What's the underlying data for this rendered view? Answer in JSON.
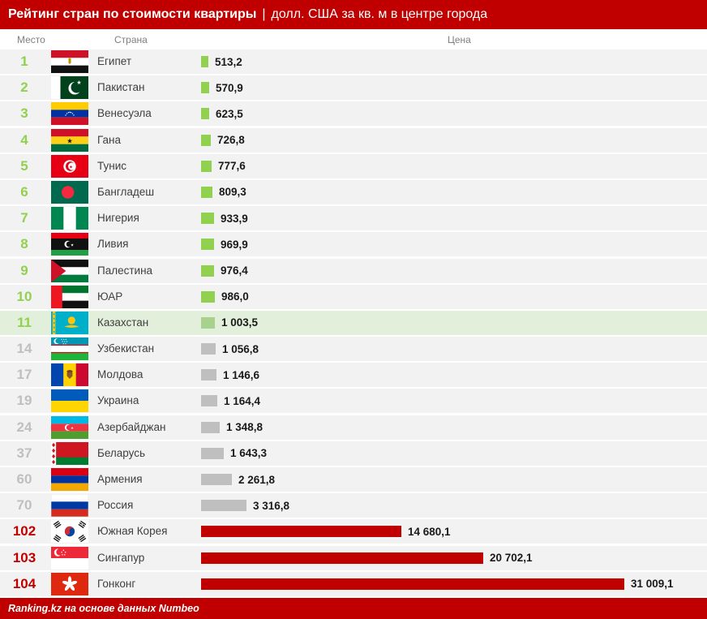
{
  "header": {
    "title_bold": "Рейтинг стран по стоимости квартиры",
    "title_sep": "|",
    "title_rest": "долл. США за кв. м в центре города"
  },
  "columns": {
    "rank": "Место",
    "country": "Страна",
    "price": "Цена"
  },
  "footer": {
    "credit": "Ranking.kz на основе данных Numbeo"
  },
  "colors": {
    "accent_red": "#c00000",
    "green": "#92d050",
    "highlight_bar": "#a9d18e",
    "highlight_row_bg": "#e2efda",
    "gray": "#bfbfbf",
    "row_bg": "#f2f2f2",
    "value_text": "#1a1a1a",
    "country_text": "#404040",
    "column_header_text": "#808080"
  },
  "chart_data": {
    "type": "bar",
    "orientation": "horizontal",
    "title": "Рейтинг стран по стоимости квартиры",
    "unit": "долл. США за кв. м в центре города",
    "source": "Ranking.kz на основе данных Numbeo",
    "xlim": [
      0,
      31009.1
    ],
    "highlighted_country": "Казахстан",
    "rows": [
      {
        "rank": "1",
        "country": "Египет",
        "flag": "egypt",
        "value": 513.2,
        "label": "513,2",
        "style": "green"
      },
      {
        "rank": "2",
        "country": "Пакистан",
        "flag": "pakistan",
        "value": 570.9,
        "label": "570,9",
        "style": "green"
      },
      {
        "rank": "3",
        "country": "Венесуэла",
        "flag": "venezuela",
        "value": 623.5,
        "label": "623,5",
        "style": "green"
      },
      {
        "rank": "4",
        "country": "Гана",
        "flag": "ghana",
        "value": 726.8,
        "label": "726,8",
        "style": "green"
      },
      {
        "rank": "5",
        "country": "Тунис",
        "flag": "tunisia",
        "value": 777.6,
        "label": "777,6",
        "style": "green"
      },
      {
        "rank": "6",
        "country": "Бангладеш",
        "flag": "bangladesh",
        "value": 809.3,
        "label": "809,3",
        "style": "green"
      },
      {
        "rank": "7",
        "country": "Нигерия",
        "flag": "nigeria",
        "value": 933.9,
        "label": "933,9",
        "style": "green"
      },
      {
        "rank": "8",
        "country": "Ливия",
        "flag": "libya",
        "value": 969.9,
        "label": "969,9",
        "style": "green"
      },
      {
        "rank": "9",
        "country": "Палестина",
        "flag": "palestine",
        "value": 976.4,
        "label": "976,4",
        "style": "green"
      },
      {
        "rank": "10",
        "country": "ЮАР",
        "flag": "uae",
        "value": 986.0,
        "label": "986,0",
        "style": "green"
      },
      {
        "rank": "11",
        "country": "Казахстан",
        "flag": "kazakhstan",
        "value": 1003.5,
        "label": "1 003,5",
        "style": "highlight"
      },
      {
        "rank": "14",
        "country": "Узбекистан",
        "flag": "uzbekistan",
        "value": 1056.8,
        "label": "1 056,8",
        "style": "gray"
      },
      {
        "rank": "17",
        "country": "Молдова",
        "flag": "moldova",
        "value": 1146.6,
        "label": "1 146,6",
        "style": "gray"
      },
      {
        "rank": "19",
        "country": "Украина",
        "flag": "ukraine",
        "value": 1164.4,
        "label": "1 164,4",
        "style": "gray"
      },
      {
        "rank": "24",
        "country": "Азербайджан",
        "flag": "azerbaijan",
        "value": 1348.8,
        "label": "1 348,8",
        "style": "gray"
      },
      {
        "rank": "37",
        "country": "Беларусь",
        "flag": "belarus",
        "value": 1643.3,
        "label": "1 643,3",
        "style": "gray"
      },
      {
        "rank": "60",
        "country": "Армения",
        "flag": "armenia",
        "value": 2261.8,
        "label": "2 261,8",
        "style": "gray"
      },
      {
        "rank": "70",
        "country": "Россия",
        "flag": "russia",
        "value": 3316.8,
        "label": "3 316,8",
        "style": "gray"
      },
      {
        "rank": "102",
        "country": "Южная Корея",
        "flag": "south_korea",
        "value": 14680.1,
        "label": "14 680,1",
        "style": "red"
      },
      {
        "rank": "103",
        "country": "Сингапур",
        "flag": "singapore",
        "value": 20702.1,
        "label": "20 702,1",
        "style": "red"
      },
      {
        "rank": "104",
        "country": "Гонконг",
        "flag": "hong_kong",
        "value": 31009.1,
        "label": "31 009,1",
        "style": "red"
      }
    ]
  }
}
